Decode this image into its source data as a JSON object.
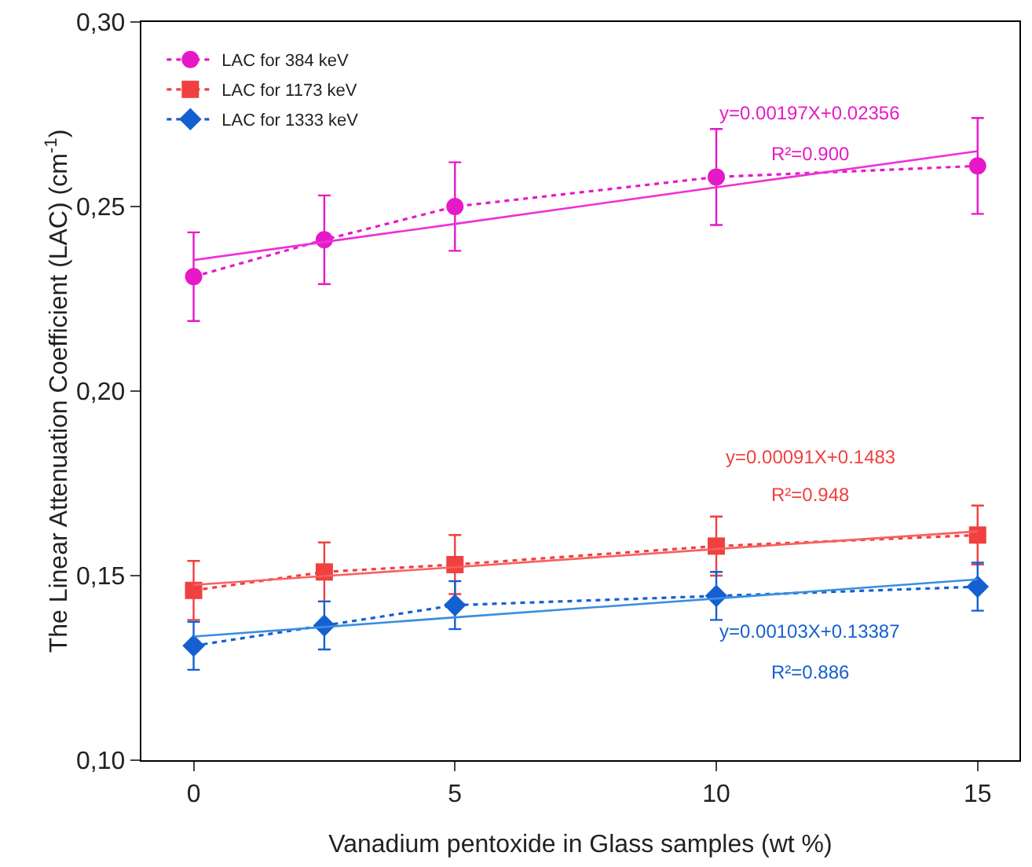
{
  "chart_data": {
    "type": "line",
    "xlabel": "Vanadium pentoxide in Glass samples (wt %)",
    "ylabel": "The Linear Attenuation Coefficient (LAC) (cm$^{-1}$)",
    "x": [
      0,
      2.5,
      5,
      10,
      15
    ],
    "series": [
      {
        "name": "LAC for 384 keV",
        "color": "#e619c8",
        "marker": "circle",
        "line_style": "dotted",
        "values": [
          0.231,
          0.241,
          0.25,
          0.258,
          0.261
        ],
        "errors": [
          0.012,
          0.012,
          0.012,
          0.013,
          0.013
        ]
      },
      {
        "name": "LAC for 1173 keV",
        "color": "#f04040",
        "marker": "square",
        "line_style": "dotted",
        "values": [
          0.146,
          0.151,
          0.153,
          0.158,
          0.161
        ],
        "errors": [
          0.008,
          0.008,
          0.008,
          0.008,
          0.008
        ]
      },
      {
        "name": "LAC for 1333 keV",
        "color": "#1560d0",
        "marker": "diamond",
        "line_style": "dotted",
        "values": [
          0.131,
          0.1365,
          0.142,
          0.1445,
          0.147
        ],
        "errors": [
          0.0065,
          0.0065,
          0.0065,
          0.0065,
          0.0065
        ]
      },
      {
        "type": "line",
        "color": "#f030d8",
        "marker": "none",
        "line_style": "solid",
        "values": [
          0.2355,
          0.2404,
          0.2453,
          0.2552,
          0.265
        ]
      },
      {
        "type": "line",
        "color": "#f86060",
        "marker": "none",
        "line_style": "solid",
        "values": [
          0.1475,
          0.1499,
          0.1523,
          0.1572,
          0.162
        ]
      },
      {
        "type": "line",
        "color": "#3a8ee0",
        "marker": "none",
        "line_style": "solid",
        "values": [
          0.1335,
          0.1361,
          0.1387,
          0.1438,
          0.149
        ]
      }
    ],
    "annotations": [
      "y=0.00197X+0.02356",
      "R²=0.900",
      "y=0.00091X+0.1483",
      "R²=0.948",
      "y=0.00103X+0.13387",
      "R²=0.886"
    ],
    "xlim": [
      -1,
      15.8
    ],
    "xticks": [
      0,
      5,
      10,
      15
    ],
    "ylim": [
      0.1,
      0.3
    ],
    "yticks": [
      {
        "value": 0.1,
        "label": "0,10"
      },
      {
        "value": 0.15,
        "label": "0,15"
      },
      {
        "value": 0.2,
        "label": "0,20"
      },
      {
        "value": 0.25,
        "label": "0,25"
      },
      {
        "value": 0.3,
        "label": "0,30"
      }
    ],
    "grid": false,
    "legend": "top left"
  }
}
